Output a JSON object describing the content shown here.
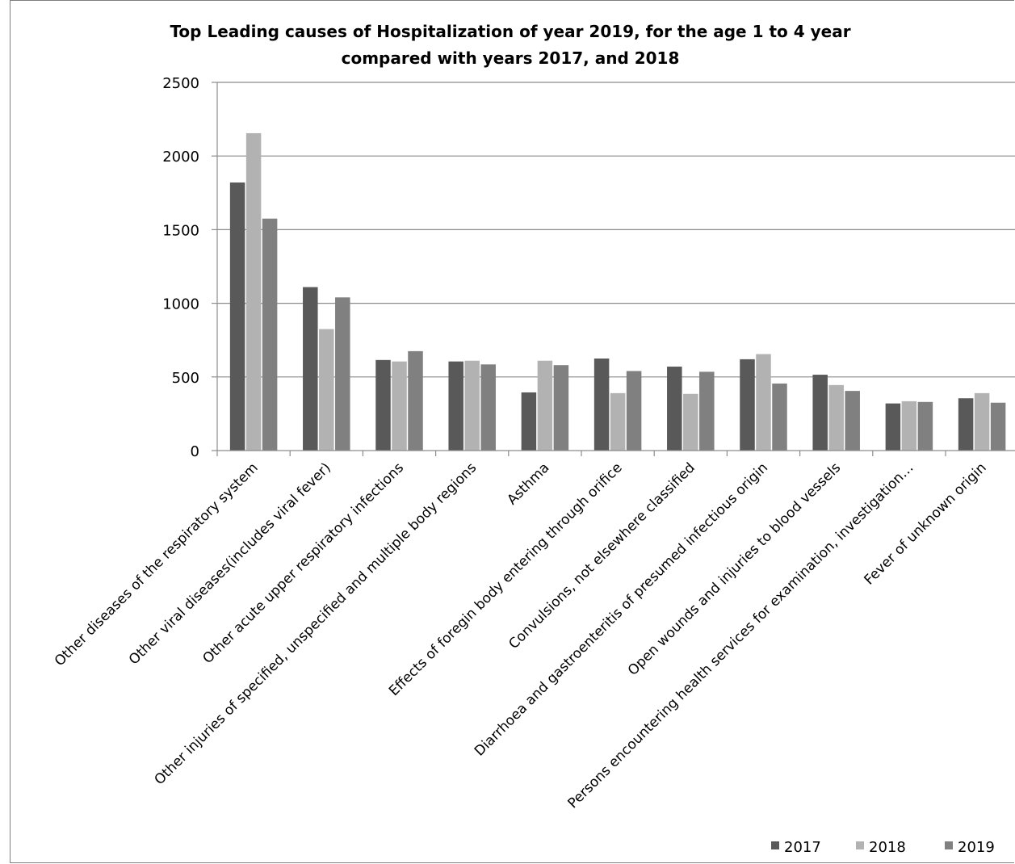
{
  "chart_data": {
    "type": "bar",
    "title": "Top Leading causes of Hospitalization of year 2019, for the age 1 to 4 year compared with years 2017, and 2018",
    "title_lines": [
      "Top Leading causes of Hospitalization of year 2019, for the age 1 to 4 year",
      "compared with years 2017, and 2018"
    ],
    "xlabel": "",
    "ylabel": "",
    "ylim": [
      0,
      2500
    ],
    "yticks": [
      0,
      500,
      1000,
      1500,
      2000,
      2500
    ],
    "ytick_labels": [
      "0",
      "500",
      "1000",
      "1500",
      "2000",
      "2500"
    ],
    "grid": true,
    "legend_position": "bottom-right",
    "categories": [
      "Other diseases of the respiratory system",
      "Other viral diseases(includes viral fever)",
      "Other acute upper respiratory infections",
      "Other injuries of specified, unspecified and multiple body regions",
      "Asthma",
      "Effects of foregin body entering through orifice",
      "Convulsions, not elsewhere classified",
      "Diarrhoea and gastroenteritis of presumed infectious origin",
      "Open wounds and injuries to blood vessels",
      "Persons encountering health services for examination, investigation…",
      "Fever of unknown origin"
    ],
    "series": [
      {
        "name": "2017",
        "color": "#595959",
        "values": [
          1820,
          1110,
          615,
          605,
          395,
          625,
          570,
          620,
          515,
          320,
          355
        ]
      },
      {
        "name": "2018",
        "color": "#b2b2b2",
        "values": [
          2155,
          825,
          605,
          610,
          610,
          390,
          385,
          655,
          445,
          335,
          390
        ]
      },
      {
        "name": "2019",
        "color": "#808080",
        "values": [
          1575,
          1040,
          675,
          585,
          580,
          540,
          535,
          455,
          405,
          330,
          325
        ]
      }
    ]
  }
}
